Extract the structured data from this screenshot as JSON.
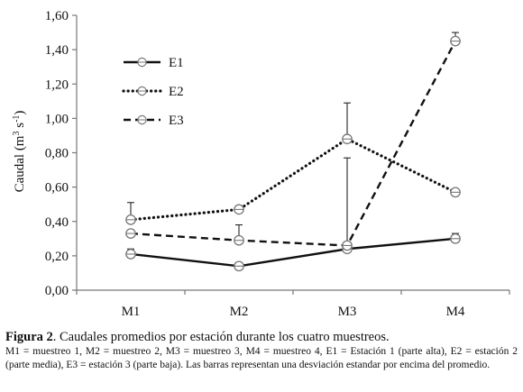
{
  "chart_data": {
    "type": "line",
    "categories": [
      "M1",
      "M2",
      "M3",
      "M4"
    ],
    "ylabel_main": "Caudal (m",
    "ylabel_sup1": "3",
    "ylabel_mid": " s",
    "ylabel_sup2": "-1",
    "ylabel_end": ")",
    "ylim": [
      0,
      1.6
    ],
    "yticks": [
      "0,00",
      "0,20",
      "0,40",
      "0,60",
      "0,80",
      "1,00",
      "1,20",
      "1,40",
      "1,60"
    ],
    "ytick_values": [
      0,
      0.2,
      0.4,
      0.6,
      0.8,
      1.0,
      1.2,
      1.4,
      1.6
    ],
    "grid": false,
    "legend_position": "top-left",
    "series": [
      {
        "name": "E1",
        "values": [
          0.21,
          0.14,
          0.24,
          0.3
        ],
        "error_plus": [
          0.03,
          0,
          0,
          0.03
        ],
        "style": "solid"
      },
      {
        "name": "E2",
        "values": [
          0.41,
          0.47,
          0.88,
          0.57
        ],
        "error_plus": [
          0.1,
          0,
          0.21,
          0
        ],
        "style": "dotted"
      },
      {
        "name": "E3",
        "values": [
          0.33,
          0.29,
          0.26,
          1.45
        ],
        "error_plus": [
          0,
          0.09,
          0.51,
          0.05
        ],
        "style": "dashed"
      }
    ]
  },
  "caption": {
    "label": "Figura 2",
    "title": ". Caudales promedios por estación durante los cuatro muestreos.",
    "notes": "M1 = muestreo 1, M2 = muestreo 2, M3 = muestreo 3, M4 = muestreo 4, E1 = Estación 1 (parte alta), E2 = estación 2 (parte media), E3 = estación 3 (parte baja). Las barras representan una desviación estandar por encima del promedio."
  }
}
